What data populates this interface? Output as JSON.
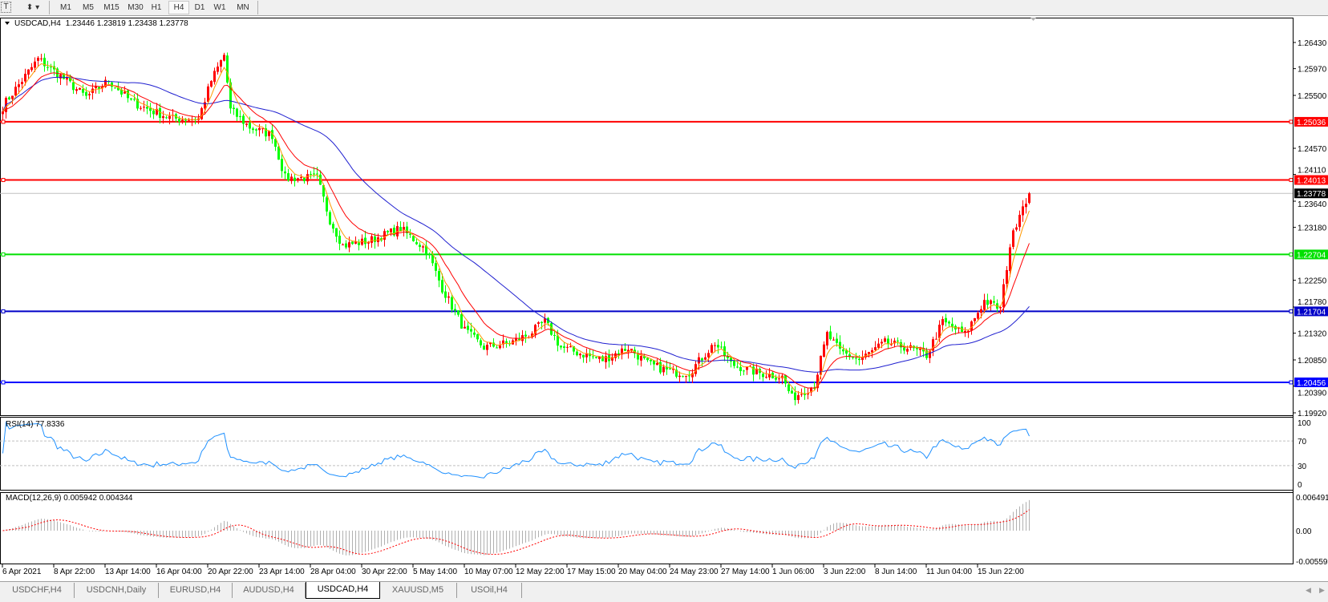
{
  "toolbar": {
    "text_tool_icon": "text-T-icon",
    "arrows_icon": "arrows-dropdown-icon",
    "timeframes": [
      "M1",
      "M5",
      "M15",
      "M30",
      "H1",
      "H4",
      "D1",
      "W1",
      "MN"
    ],
    "active_timeframe": "H4"
  },
  "chart": {
    "header": "USDCAD,H4",
    "ohlc": "1.23446 1.23819 1.23438 1.23778",
    "last_price": "1.23778",
    "colors": {
      "bull": "#ff0000",
      "bear": "#00ff00",
      "ma_fast": "#ff9900",
      "ma_mid": "#ff0000",
      "ma_slow": "#2020d0",
      "rsi": "#1e90ff",
      "macd_hist": "#b0b0b0",
      "macd_signal": "#ff0000"
    },
    "price_axis": [
      "1.26430",
      "1.25970",
      "1.25500",
      "1.24570",
      "1.24110",
      "1.23640",
      "1.23180",
      "1.22250",
      "1.21780",
      "1.21320",
      "1.20850",
      "1.20390",
      "1.19920"
    ],
    "hlines": [
      {
        "price": "1.25036",
        "color": "#ff0000"
      },
      {
        "price": "1.24013",
        "color": "#ff0000"
      },
      {
        "price": "1.22704",
        "color": "#00e000"
      },
      {
        "price": "1.21704",
        "color": "#0000c8"
      },
      {
        "price": "1.20456",
        "color": "#0000ff"
      }
    ],
    "close_anchors": [
      [
        0,
        1.253
      ],
      [
        1,
        1.2539
      ],
      [
        11,
        1.2614
      ],
      [
        18,
        1.2584
      ],
      [
        26,
        1.2547
      ],
      [
        33,
        1.2576
      ],
      [
        40,
        1.2539
      ],
      [
        46,
        1.2524
      ],
      [
        53,
        1.2509
      ],
      [
        61,
        1.2509
      ],
      [
        65,
        1.2576
      ],
      [
        69,
        1.2621
      ],
      [
        71,
        1.2524
      ],
      [
        77,
        1.2494
      ],
      [
        84,
        1.248
      ],
      [
        88,
        1.2405
      ],
      [
        98,
        1.2405
      ],
      [
        102,
        1.2331
      ],
      [
        106,
        1.2286
      ],
      [
        114,
        1.2294
      ],
      [
        124,
        1.2316
      ],
      [
        132,
        1.2279
      ],
      [
        137,
        1.2211
      ],
      [
        144,
        1.2137
      ],
      [
        150,
        1.2107
      ],
      [
        158,
        1.2115
      ],
      [
        164,
        1.213
      ],
      [
        169,
        1.2152
      ],
      [
        174,
        1.2107
      ],
      [
        182,
        1.2093
      ],
      [
        187,
        1.2085
      ],
      [
        195,
        1.2107
      ],
      [
        201,
        1.2078
      ],
      [
        209,
        1.2063
      ],
      [
        214,
        1.2063
      ],
      [
        222,
        1.2115
      ],
      [
        227,
        1.2078
      ],
      [
        235,
        1.2063
      ],
      [
        243,
        1.2055
      ],
      [
        246,
        1.2018
      ],
      [
        253,
        1.2041
      ],
      [
        257,
        1.213
      ],
      [
        261,
        1.21
      ],
      [
        267,
        1.2085
      ],
      [
        275,
        1.2115
      ],
      [
        282,
        1.2107
      ],
      [
        288,
        1.2093
      ],
      [
        293,
        1.2152
      ],
      [
        300,
        1.213
      ],
      [
        306,
        1.2189
      ],
      [
        311,
        1.2175
      ],
      [
        314,
        1.2286
      ],
      [
        317,
        1.2346
      ],
      [
        320,
        1.23778
      ]
    ]
  },
  "rsi": {
    "label": "RSI(14) 77.8336",
    "axis": [
      "100",
      "70",
      "30",
      "0"
    ],
    "value": 77.8336
  },
  "macd": {
    "label": "MACD(12,26,9) 0.005942 0.004344",
    "axis": [
      "0.006491",
      "0.00",
      "-0.005593"
    ]
  },
  "time_axis": [
    "6 Apr 2021",
    "8 Apr 22:00",
    "13 Apr 14:00",
    "16 Apr 04:00",
    "20 Apr 22:00",
    "23 Apr 14:00",
    "28 Apr 04:00",
    "30 Apr 22:00",
    "5 May 14:00",
    "10 May 07:00",
    "12 May 22:00",
    "17 May 15:00",
    "20 May 04:00",
    "24 May 23:00",
    "27 May 14:00",
    "1 Jun 06:00",
    "3 Jun 22:00",
    "8 Jun 14:00",
    "11 Jun 04:00",
    "15 Jun 22:00"
  ],
  "tabs": [
    {
      "label": "USDCHF,H4"
    },
    {
      "label": "USDCNH,Daily"
    },
    {
      "label": "EURUSD,H4"
    },
    {
      "label": "AUDUSD,H4"
    },
    {
      "label": "USDCAD,H4",
      "active": true
    },
    {
      "label": "XAUUSD,M5"
    },
    {
      "label": "USOil,H4"
    }
  ]
}
